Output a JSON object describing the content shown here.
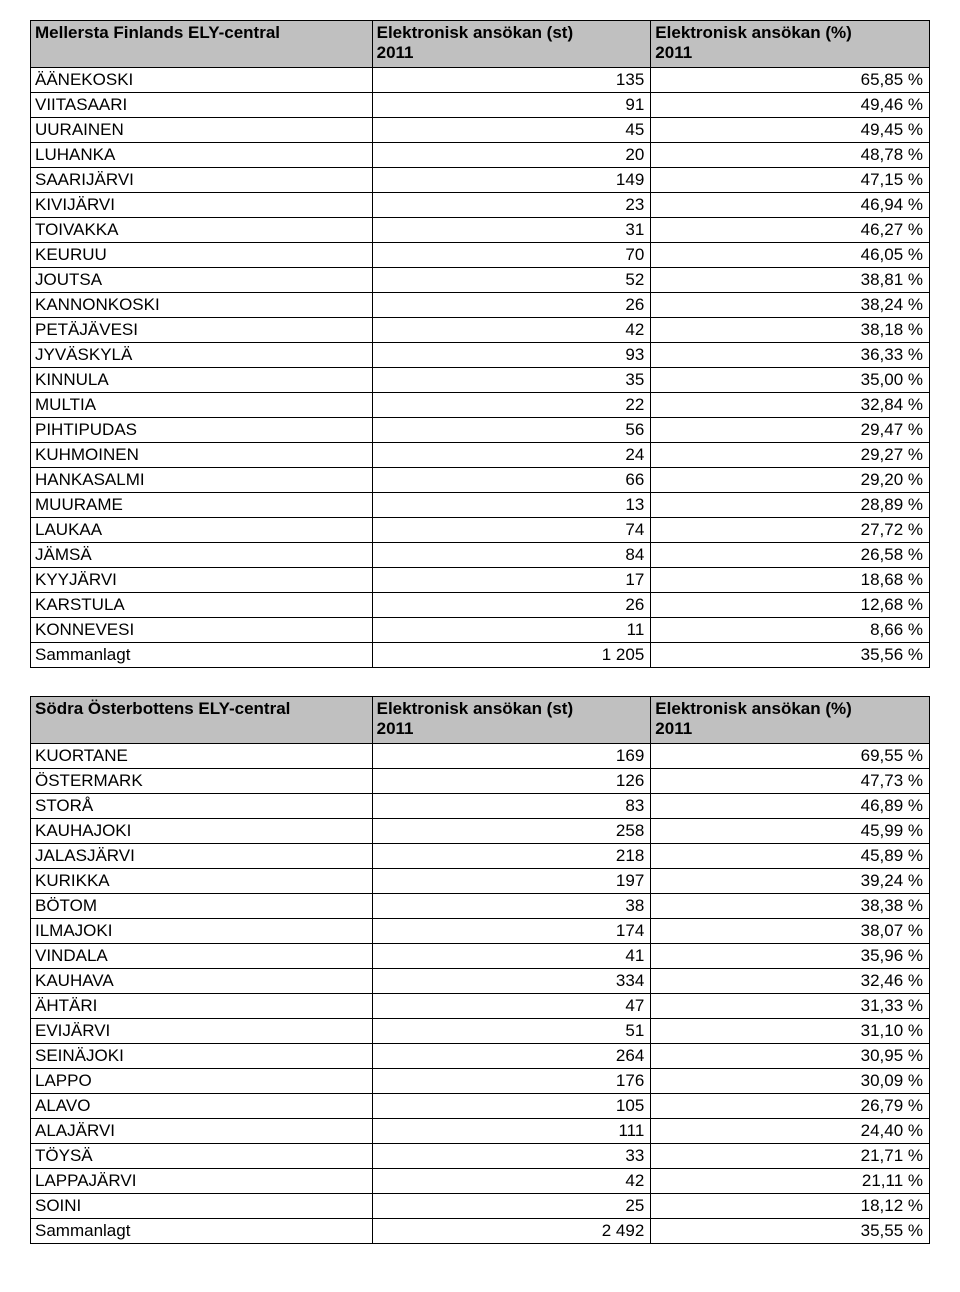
{
  "tables": [
    {
      "title": "Mellersta Finlands ELY-central",
      "col2_header_line1": "Elektronisk ansökan (st)",
      "col2_header_line2": "2011",
      "col3_header_line1": "Elektronisk ansökan (%)",
      "col3_header_line2": "2011",
      "rows": [
        {
          "name": "ÄÄNEKOSKI",
          "st": "135",
          "pct": "65,85 %"
        },
        {
          "name": "VIITASAARI",
          "st": "91",
          "pct": "49,46 %"
        },
        {
          "name": "UURAINEN",
          "st": "45",
          "pct": "49,45 %"
        },
        {
          "name": "LUHANKA",
          "st": "20",
          "pct": "48,78 %"
        },
        {
          "name": "SAARIJÄRVI",
          "st": "149",
          "pct": "47,15 %"
        },
        {
          "name": "KIVIJÄRVI",
          "st": "23",
          "pct": "46,94 %"
        },
        {
          "name": "TOIVAKKA",
          "st": "31",
          "pct": "46,27 %"
        },
        {
          "name": "KEURUU",
          "st": "70",
          "pct": "46,05 %"
        },
        {
          "name": "JOUTSA",
          "st": "52",
          "pct": "38,81 %"
        },
        {
          "name": "KANNONKOSKI",
          "st": "26",
          "pct": "38,24 %"
        },
        {
          "name": "PETÄJÄVESI",
          "st": "42",
          "pct": "38,18 %"
        },
        {
          "name": "JYVÄSKYLÄ",
          "st": "93",
          "pct": "36,33 %"
        },
        {
          "name": "KINNULA",
          "st": "35",
          "pct": "35,00 %"
        },
        {
          "name": "MULTIA",
          "st": "22",
          "pct": "32,84 %"
        },
        {
          "name": "PIHTIPUDAS",
          "st": "56",
          "pct": "29,47 %"
        },
        {
          "name": "KUHMOINEN",
          "st": "24",
          "pct": "29,27 %"
        },
        {
          "name": "HANKASALMI",
          "st": "66",
          "pct": "29,20 %"
        },
        {
          "name": "MUURAME",
          "st": "13",
          "pct": "28,89 %"
        },
        {
          "name": "LAUKAA",
          "st": "74",
          "pct": "27,72 %"
        },
        {
          "name": "JÄMSÄ",
          "st": "84",
          "pct": "26,58 %"
        },
        {
          "name": "KYYJÄRVI",
          "st": "17",
          "pct": "18,68 %"
        },
        {
          "name": "KARSTULA",
          "st": "26",
          "pct": "12,68 %"
        },
        {
          "name": "KONNEVESI",
          "st": "11",
          "pct": "8,66 %"
        },
        {
          "name": "Sammanlagt",
          "st": "1 205",
          "pct": "35,56 %"
        }
      ]
    },
    {
      "title": "Södra Österbottens ELY-central",
      "col2_header_line1": "Elektronisk ansökan (st)",
      "col2_header_line2": "2011",
      "col3_header_line1": "Elektronisk ansökan (%)",
      "col3_header_line2": "2011",
      "rows": [
        {
          "name": "KUORTANE",
          "st": "169",
          "pct": "69,55 %"
        },
        {
          "name": "ÖSTERMARK",
          "st": "126",
          "pct": "47,73 %"
        },
        {
          "name": "STORÅ",
          "st": "83",
          "pct": "46,89 %"
        },
        {
          "name": "KAUHAJOKI",
          "st": "258",
          "pct": "45,99 %"
        },
        {
          "name": "JALASJÄRVI",
          "st": "218",
          "pct": "45,89 %"
        },
        {
          "name": "KURIKKA",
          "st": "197",
          "pct": "39,24 %"
        },
        {
          "name": "BÖTOM",
          "st": "38",
          "pct": "38,38 %"
        },
        {
          "name": "ILMAJOKI",
          "st": "174",
          "pct": "38,07 %"
        },
        {
          "name": "VINDALA",
          "st": "41",
          "pct": "35,96 %"
        },
        {
          "name": "KAUHAVA",
          "st": "334",
          "pct": "32,46 %"
        },
        {
          "name": "ÄHTÄRI",
          "st": "47",
          "pct": "31,33 %"
        },
        {
          "name": "EVIJÄRVI",
          "st": "51",
          "pct": "31,10 %"
        },
        {
          "name": "SEINÄJOKI",
          "st": "264",
          "pct": "30,95 %"
        },
        {
          "name": "LAPPO",
          "st": "176",
          "pct": "30,09 %"
        },
        {
          "name": "ALAVO",
          "st": "105",
          "pct": "26,79 %"
        },
        {
          "name": "ALAJÄRVI",
          "st": "111",
          "pct": "24,40 %"
        },
        {
          "name": "TÖYSÄ",
          "st": "33",
          "pct": "21,71 %"
        },
        {
          "name": "LAPPAJÄRVI",
          "st": "42",
          "pct": "21,11 %"
        },
        {
          "name": "SOINI",
          "st": "25",
          "pct": "18,12 %"
        },
        {
          "name": "Sammanlagt",
          "st": "2 492",
          "pct": "35,55 %"
        }
      ]
    }
  ]
}
